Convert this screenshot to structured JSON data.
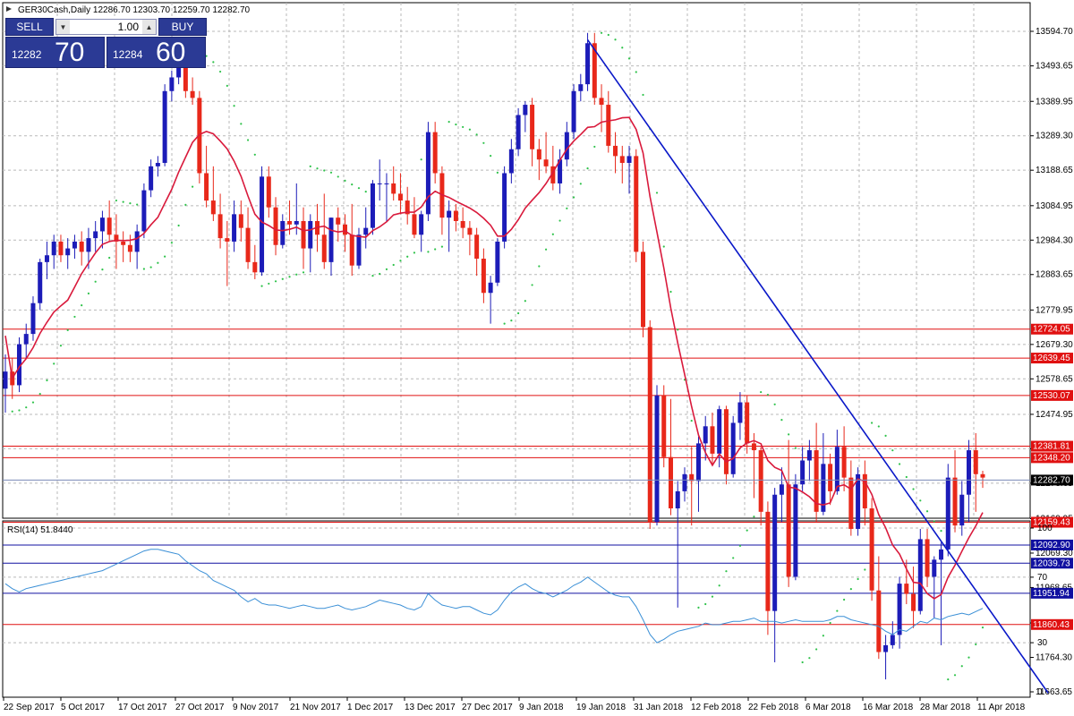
{
  "header": {
    "symbol_info": "GER30Cash,Daily  12286.70 12303.70 12259.70 12282.70"
  },
  "trade_panel": {
    "sell_label": "SELL",
    "buy_label": "BUY",
    "lot_value": "1.00",
    "sell_price_small": "12282",
    "sell_price_big": "70",
    "buy_price_small": "12284",
    "buy_price_big": "60"
  },
  "colors": {
    "bull": "#1c1cb8",
    "bear": "#e8281a",
    "ma": "#d91a3c",
    "sar": "#2ec24a",
    "trend": "#0a18c8",
    "rsi": "#3a8fd6",
    "hline_red": "#e01010",
    "hline_blue": "#1010a0"
  },
  "chart_data": {
    "type": "candlestick",
    "series": [
      {
        "name": "GER30Cash,Daily"
      },
      {
        "name": "RSI(14) 51.8440"
      }
    ],
    "price_axis_ticks": [
      "13594.70",
      "13493.65",
      "13389.95",
      "13289.30",
      "13188.65",
      "13084.95",
      "12984.30",
      "12883.65",
      "12779.95",
      "12679.30",
      "12578.65",
      "12474.95",
      "12374.30",
      "12273.65",
      "12169.95",
      "12069.30",
      "11968.65",
      "11865.00",
      "11764.30",
      "11663.65"
    ],
    "ylim": [
      11663.65,
      13594.7
    ],
    "rsi_axis_ticks": [
      "100",
      "70",
      "30",
      "0"
    ],
    "rsi_lim": [
      0,
      100
    ],
    "time_labels": [
      "22 Sep 2017",
      "5 Oct 2017",
      "17 Oct 2017",
      "27 Oct 2017",
      "9 Nov 2017",
      "21 Nov 2017",
      "1 Dec 2017",
      "13 Dec 2017",
      "27 Dec 2017",
      "9 Jan 2018",
      "19 Jan 2018",
      "31 Jan 2018",
      "12 Feb 2018",
      "22 Feb 2018",
      "6 Mar 2018",
      "16 Mar 2018",
      "28 Mar 2018",
      "11 Apr 2018"
    ],
    "horizontal_levels": [
      {
        "price": 12724.05,
        "label": "12724.05",
        "color": "red"
      },
      {
        "price": 12639.45,
        "label": "12639.45",
        "color": "red"
      },
      {
        "price": 12530.07,
        "label": "12530.07",
        "color": "red"
      },
      {
        "price": 12381.81,
        "label": "12381.81",
        "color": "red"
      },
      {
        "price": 12348.2,
        "label": "12348.20",
        "color": "red"
      },
      {
        "price": 12159.43,
        "label": "12159.43",
        "color": "red"
      },
      {
        "price": 12092.9,
        "label": "12092.90",
        "color": "blue"
      },
      {
        "price": 12039.73,
        "label": "12039.73",
        "color": "blue"
      },
      {
        "price": 11951.94,
        "label": "11951.94",
        "color": "blue"
      },
      {
        "price": 11860.43,
        "label": "11860.43",
        "color": "red"
      }
    ],
    "current_price": {
      "price": 12282.7,
      "label": "12282.70"
    },
    "trendline": [
      [
        13570,
        0
      ],
      [
        11660,
        0
      ]
    ],
    "candles": [
      [
        12550,
        12650,
        12480,
        12600
      ],
      [
        12600,
        12640,
        12520,
        12560
      ],
      [
        12560,
        12700,
        12540,
        12680
      ],
      [
        12680,
        12740,
        12640,
        12710
      ],
      [
        12710,
        12820,
        12690,
        12800
      ],
      [
        12800,
        12930,
        12780,
        12920
      ],
      [
        12920,
        12980,
        12870,
        12940
      ],
      [
        12940,
        13000,
        12900,
        12980
      ],
      [
        12980,
        13000,
        12920,
        12940
      ],
      [
        12940,
        12990,
        12900,
        12960
      ],
      [
        12960,
        13000,
        12930,
        12980
      ],
      [
        12980,
        13010,
        12910,
        12950
      ],
      [
        12950,
        13020,
        12900,
        12990
      ],
      [
        12990,
        13040,
        12950,
        13010
      ],
      [
        13010,
        13070,
        12960,
        13050
      ],
      [
        13050,
        13100,
        12980,
        13000
      ],
      [
        13000,
        13060,
        12900,
        12980
      ],
      [
        12980,
        13010,
        12920,
        12970
      ],
      [
        12970,
        13000,
        12920,
        12950
      ],
      [
        12950,
        13030,
        12900,
        13010
      ],
      [
        13010,
        13150,
        12990,
        13130
      ],
      [
        13130,
        13220,
        13110,
        13200
      ],
      [
        13200,
        13230,
        13170,
        13210
      ],
      [
        13210,
        13440,
        13200,
        13420
      ],
      [
        13420,
        13480,
        13390,
        13460
      ],
      [
        13460,
        13530,
        13440,
        13500
      ],
      [
        13500,
        13530,
        13400,
        13420
      ],
      [
        13420,
        13460,
        13380,
        13400
      ],
      [
        13400,
        13420,
        13150,
        13180
      ],
      [
        13180,
        13260,
        13080,
        13100
      ],
      [
        13100,
        13200,
        13040,
        13060
      ],
      [
        13060,
        13120,
        12960,
        12990
      ],
      [
        12990,
        13040,
        12850,
        12980
      ],
      [
        12980,
        13100,
        12950,
        13060
      ],
      [
        13060,
        13100,
        12980,
        13020
      ],
      [
        13020,
        13080,
        12900,
        12920
      ],
      [
        12920,
        12970,
        12870,
        12890
      ],
      [
        12890,
        13200,
        12880,
        13170
      ],
      [
        13170,
        13200,
        13050,
        13080
      ],
      [
        13080,
        13110,
        12940,
        12970
      ],
      [
        12970,
        13060,
        12960,
        13040
      ],
      [
        13040,
        13100,
        13000,
        13030
      ],
      [
        13030,
        13150,
        13000,
        13040
      ],
      [
        13040,
        13080,
        12900,
        12960
      ],
      [
        12960,
        13060,
        12890,
        13040
      ],
      [
        13040,
        13090,
        12950,
        13000
      ],
      [
        13000,
        13120,
        12900,
        12920
      ],
      [
        12920,
        13050,
        12880,
        13050
      ],
      [
        13050,
        13080,
        12980,
        13030
      ],
      [
        13030,
        13060,
        12950,
        13000
      ],
      [
        13000,
        13090,
        12880,
        12910
      ],
      [
        12910,
        13020,
        12900,
        13000
      ],
      [
        13000,
        13080,
        12960,
        13020
      ],
      [
        13020,
        13160,
        13000,
        13150
      ],
      [
        13150,
        13220,
        13100,
        13150
      ],
      [
        13150,
        13180,
        13040,
        13150
      ],
      [
        13150,
        13200,
        13100,
        13120
      ],
      [
        13120,
        13180,
        13060,
        13100
      ],
      [
        13100,
        13140,
        13030,
        13060
      ],
      [
        13060,
        13110,
        12990,
        13000
      ],
      [
        13000,
        13070,
        12950,
        13060
      ],
      [
        13060,
        13330,
        13040,
        13300
      ],
      [
        13300,
        13330,
        13150,
        13180
      ],
      [
        13180,
        13200,
        13000,
        13050
      ],
      [
        13050,
        13100,
        12950,
        13070
      ],
      [
        13070,
        13090,
        13010,
        13040
      ],
      [
        13040,
        13080,
        12990,
        13020
      ],
      [
        13020,
        13040,
        12940,
        13000
      ],
      [
        13000,
        13020,
        12880,
        12930
      ],
      [
        12930,
        12960,
        12800,
        12830
      ],
      [
        12830,
        12880,
        12740,
        12860
      ],
      [
        12860,
        12990,
        12850,
        12980
      ],
      [
        12980,
        13200,
        12960,
        13180
      ],
      [
        13180,
        13280,
        13150,
        13250
      ],
      [
        13250,
        13370,
        13230,
        13350
      ],
      [
        13350,
        13390,
        13300,
        13380
      ],
      [
        13380,
        13400,
        13200,
        13250
      ],
      [
        13250,
        13280,
        13160,
        13220
      ],
      [
        13220,
        13300,
        13180,
        13200
      ],
      [
        13200,
        13260,
        13130,
        13150
      ],
      [
        13150,
        13250,
        13120,
        13220
      ],
      [
        13220,
        13330,
        13200,
        13300
      ],
      [
        13300,
        13440,
        13280,
        13420
      ],
      [
        13420,
        13470,
        13390,
        13440
      ],
      [
        13440,
        13590,
        13420,
        13560
      ],
      [
        13560,
        13590,
        13380,
        13400
      ],
      [
        13400,
        13440,
        13300,
        13380
      ],
      [
        13380,
        13420,
        13240,
        13260
      ],
      [
        13260,
        13300,
        13180,
        13230
      ],
      [
        13230,
        13260,
        13150,
        13210
      ],
      [
        13210,
        13260,
        13120,
        13230
      ],
      [
        13230,
        13250,
        12920,
        12950
      ],
      [
        12950,
        12980,
        12700,
        12730
      ],
      [
        12730,
        12750,
        12140,
        12160
      ],
      [
        12160,
        12560,
        12150,
        12530
      ],
      [
        12530,
        12560,
        12320,
        12350
      ],
      [
        12350,
        12520,
        12180,
        12200
      ],
      [
        12200,
        12280,
        11910,
        12250
      ],
      [
        12250,
        12320,
        12220,
        12300
      ],
      [
        12300,
        12380,
        12150,
        12280
      ],
      [
        12280,
        12410,
        12190,
        12390
      ],
      [
        12390,
        12470,
        12340,
        12440
      ],
      [
        12440,
        12480,
        12330,
        12360
      ],
      [
        12360,
        12500,
        12320,
        12490
      ],
      [
        12490,
        12500,
        12270,
        12300
      ],
      [
        12300,
        12470,
        12290,
        12450
      ],
      [
        12450,
        12540,
        12400,
        12510
      ],
      [
        12510,
        12530,
        12360,
        12390
      ],
      [
        12390,
        12420,
        12230,
        12370
      ],
      [
        12370,
        12380,
        12150,
        12190
      ],
      [
        12190,
        12220,
        11830,
        11900
      ],
      [
        11900,
        12260,
        11750,
        12240
      ],
      [
        12240,
        12320,
        12160,
        12270
      ],
      [
        12270,
        12400,
        11970,
        12000
      ],
      [
        12000,
        12300,
        11990,
        12270
      ],
      [
        12270,
        12380,
        12250,
        12340
      ],
      [
        12340,
        12400,
        12280,
        12370
      ],
      [
        12370,
        12450,
        12160,
        12190
      ],
      [
        12190,
        12420,
        12180,
        12330
      ],
      [
        12330,
        12360,
        12210,
        12250
      ],
      [
        12250,
        12430,
        12240,
        12380
      ],
      [
        12380,
        12440,
        12250,
        12290
      ],
      [
        12290,
        12340,
        12120,
        12140
      ],
      [
        12140,
        12320,
        12120,
        12300
      ],
      [
        12300,
        12340,
        12150,
        12200
      ],
      [
        12200,
        12230,
        11930,
        11960
      ],
      [
        11960,
        12060,
        11760,
        11780
      ],
      [
        11780,
        11830,
        11700,
        11800
      ],
      [
        11800,
        11870,
        11790,
        11830
      ],
      [
        11830,
        12000,
        11790,
        11980
      ],
      [
        11980,
        12050,
        11920,
        11950
      ],
      [
        11950,
        12030,
        11850,
        11900
      ],
      [
        11900,
        12140,
        11890,
        12110
      ],
      [
        12110,
        12140,
        11970,
        12000
      ],
      [
        12000,
        12060,
        11880,
        12050
      ],
      [
        12050,
        12100,
        11800,
        12080
      ],
      [
        12080,
        12330,
        12060,
        12290
      ],
      [
        12290,
        12370,
        12130,
        12150
      ],
      [
        12150,
        12280,
        12120,
        12240
      ],
      [
        12240,
        12400,
        12160,
        12370
      ],
      [
        12370,
        12420,
        12190,
        12300
      ],
      [
        12300,
        12310,
        12260,
        12290
      ]
    ],
    "rsi_values": [
      66,
      63,
      61,
      63,
      64,
      65,
      66,
      67,
      68,
      69,
      70,
      71,
      72,
      73,
      74,
      76,
      78,
      80,
      82,
      84,
      86,
      87,
      87,
      86,
      85,
      84,
      80,
      77,
      74,
      72,
      68,
      66,
      64,
      62,
      58,
      55,
      57,
      54,
      53,
      53,
      52,
      51,
      52,
      53,
      52,
      51,
      51,
      52,
      53,
      51,
      50,
      51,
      52,
      54,
      56,
      55,
      54,
      53,
      51,
      50,
      52,
      60,
      56,
      53,
      52,
      51,
      52,
      52,
      50,
      48,
      47,
      50,
      56,
      61,
      64,
      66,
      63,
      61,
      60,
      58,
      60,
      62,
      65,
      67,
      70,
      67,
      64,
      61,
      59,
      58,
      58,
      52,
      44,
      35,
      30,
      32,
      35,
      37,
      38,
      39,
      40,
      42,
      41,
      41,
      42,
      43,
      43,
      44,
      45,
      43,
      43,
      43,
      42,
      43,
      44,
      43,
      43,
      43,
      43,
      44,
      46,
      46,
      44,
      43,
      42,
      41,
      40,
      37,
      35,
      38,
      37,
      40,
      43,
      42,
      45,
      44,
      46,
      47,
      48,
      47,
      49,
      51
    ]
  }
}
